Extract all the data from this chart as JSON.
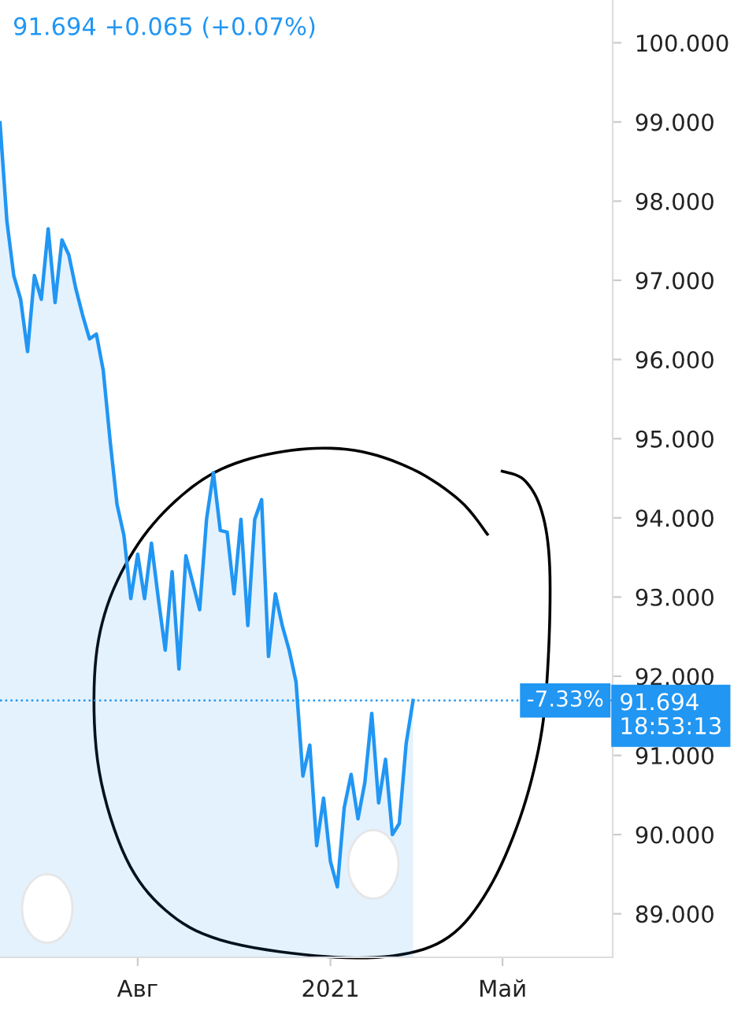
{
  "chart_data": {
    "type": "area",
    "title": "91.694 +0.065 (+0.07%)",
    "categories": [
      null,
      null,
      null,
      null,
      null,
      null,
      null,
      null,
      null,
      null,
      null,
      null,
      null,
      null,
      null,
      null,
      null,
      null,
      null,
      null,
      "Авг",
      null,
      null,
      null,
      null,
      null,
      null,
      null,
      null,
      null,
      null,
      null,
      null,
      null,
      null,
      null,
      null,
      null,
      null,
      null,
      null,
      null,
      null,
      null,
      null,
      null,
      null,
      null,
      "2021",
      null,
      null,
      null,
      null,
      null,
      null,
      null,
      null,
      null,
      null,
      null,
      null,
      null,
      null,
      null,
      null,
      null,
      null,
      null,
      null,
      null,
      null,
      null,
      null,
      "Май",
      null,
      null,
      null,
      null,
      null,
      null,
      null,
      null,
      null,
      null,
      null,
      null,
      null,
      null,
      null,
      null
    ],
    "series": [
      {
        "color": "#2196f3",
        "values": [
          98.99,
          97.75,
          97.06,
          96.76,
          96.1,
          97.06,
          96.76,
          97.65,
          96.72,
          97.51,
          97.32,
          96.9,
          96.56,
          96.26,
          96.32,
          95.86,
          94.97,
          94.17,
          93.78,
          92.98,
          93.54,
          92.98,
          93.68,
          92.98,
          92.33,
          93.32,
          92.09,
          93.52,
          93.18,
          92.84,
          93.98,
          94.57,
          93.84,
          93.82,
          93.04,
          93.98,
          92.64,
          93.98,
          94.23,
          92.25,
          93.04,
          92.64,
          92.33,
          91.93,
          90.74,
          91.13,
          89.86,
          90.46,
          89.66,
          89.34,
          90.34,
          90.76,
          90.2,
          90.66,
          91.53,
          90.4,
          90.95,
          90.0,
          90.14,
          91.15,
          91.694,
          null,
          null,
          null,
          null,
          null,
          null,
          null,
          null,
          null,
          null,
          null,
          null,
          null,
          null,
          null,
          null,
          null,
          null,
          null,
          null,
          null,
          null,
          null,
          null,
          null,
          null,
          null,
          null,
          null
        ]
      }
    ],
    "ylim": [
      88.45,
      100.54
    ],
    "yticks": [
      {
        "value": 89,
        "label": "89.000"
      },
      {
        "value": 90,
        "label": "90.000"
      },
      {
        "value": 91,
        "label": "91.000"
      },
      {
        "value": 92,
        "label": "92.000"
      },
      {
        "value": 93,
        "label": "93.000"
      },
      {
        "value": 94,
        "label": "94.000"
      },
      {
        "value": 95,
        "label": "95.000"
      },
      {
        "value": 96,
        "label": "96.000"
      },
      {
        "value": 97,
        "label": "97.000"
      },
      {
        "value": 98,
        "label": "98.000"
      },
      {
        "value": 99,
        "label": "99.000"
      },
      {
        "value": 100,
        "label": "100.000"
      }
    ],
    "ref_lines": [
      {
        "axis": "y",
        "value": 91.694,
        "label": "91.694",
        "color": "#2196f3",
        "line_style": "dotted"
      }
    ],
    "annotations": [
      "-7.33%",
      "18:53:13"
    ],
    "grid": false,
    "legend": false,
    "marker": "none",
    "line_style": "solid"
  }
}
